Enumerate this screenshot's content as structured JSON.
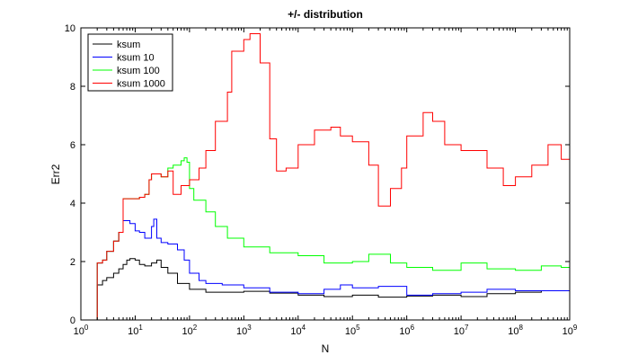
{
  "chart_data": {
    "type": "line",
    "title": "+/- distribution",
    "xlabel": "N",
    "ylabel": "Err2",
    "xscale": "log",
    "xlim": [
      1,
      1000000000
    ],
    "ylim": [
      0,
      10
    ],
    "x_ticks": [
      {
        "value": 1,
        "base": "10",
        "exp": "0"
      },
      {
        "value": 10,
        "base": "10",
        "exp": "1"
      },
      {
        "value": 100,
        "base": "10",
        "exp": "2"
      },
      {
        "value": 1000,
        "base": "10",
        "exp": "3"
      },
      {
        "value": 10000,
        "base": "10",
        "exp": "4"
      },
      {
        "value": 100000,
        "base": "10",
        "exp": "5"
      },
      {
        "value": 1000000,
        "base": "10",
        "exp": "6"
      },
      {
        "value": 10000000,
        "base": "10",
        "exp": "7"
      },
      {
        "value": 100000000,
        "base": "10",
        "exp": "8"
      },
      {
        "value": 1000000000,
        "base": "10",
        "exp": "9"
      }
    ],
    "y_ticks": [
      "0",
      "2",
      "4",
      "6",
      "8",
      "10"
    ],
    "grid": false,
    "legend_position": "top-left",
    "series": [
      {
        "name": "ksum",
        "color": "#000000",
        "points": [
          [
            1,
            0
          ],
          [
            1.9,
            0
          ],
          [
            2,
            1.2
          ],
          [
            2.5,
            1.35
          ],
          [
            3,
            1.45
          ],
          [
            4,
            1.6
          ],
          [
            5,
            1.75
          ],
          [
            6,
            1.9
          ],
          [
            7,
            2.05
          ],
          [
            8,
            2.1
          ],
          [
            10,
            2.05
          ],
          [
            12,
            1.9
          ],
          [
            15,
            1.85
          ],
          [
            20,
            1.95
          ],
          [
            25,
            2.05
          ],
          [
            30,
            1.8
          ],
          [
            40,
            1.6
          ],
          [
            60,
            1.25
          ],
          [
            100,
            1.05
          ],
          [
            200,
            0.95
          ],
          [
            500,
            0.95
          ],
          [
            1000,
            0.98
          ],
          [
            3000,
            0.92
          ],
          [
            10000,
            0.85
          ],
          [
            30000,
            0.8
          ],
          [
            100000,
            0.85
          ],
          [
            300000,
            0.78
          ],
          [
            1000000,
            0.82
          ],
          [
            3000000,
            0.85
          ],
          [
            10000000,
            0.8
          ],
          [
            30000000,
            0.9
          ],
          [
            100000000,
            0.95
          ],
          [
            300000000,
            1.0
          ],
          [
            1000000000,
            0.85
          ]
        ]
      },
      {
        "name": "ksum 10",
        "color": "#0000ff",
        "points": [
          [
            1,
            0
          ],
          [
            1.9,
            0
          ],
          [
            2,
            1.95
          ],
          [
            2.5,
            2.05
          ],
          [
            3,
            2.35
          ],
          [
            4,
            2.7
          ],
          [
            5,
            3.0
          ],
          [
            6,
            3.4
          ],
          [
            8,
            3.3
          ],
          [
            10,
            3.05
          ],
          [
            12,
            3.0
          ],
          [
            15,
            2.8
          ],
          [
            20,
            3.2
          ],
          [
            22,
            3.45
          ],
          [
            25,
            2.8
          ],
          [
            30,
            2.65
          ],
          [
            40,
            2.6
          ],
          [
            60,
            2.4
          ],
          [
            80,
            2.05
          ],
          [
            100,
            1.6
          ],
          [
            150,
            1.35
          ],
          [
            200,
            1.25
          ],
          [
            400,
            1.2
          ],
          [
            1000,
            1.1
          ],
          [
            3000,
            0.95
          ],
          [
            10000,
            0.9
          ],
          [
            30000,
            1.05
          ],
          [
            60000,
            1.2
          ],
          [
            100000,
            1.1
          ],
          [
            300000,
            1.15
          ],
          [
            1000000,
            0.85
          ],
          [
            3000000,
            0.9
          ],
          [
            10000000,
            0.95
          ],
          [
            30000000,
            1.05
          ],
          [
            100000000,
            1.0
          ],
          [
            300000000,
            1.0
          ],
          [
            1000000000,
            0.95
          ]
        ]
      },
      {
        "name": "ksum 100",
        "color": "#00ff00",
        "points": [
          [
            1,
            0
          ],
          [
            1.9,
            0
          ],
          [
            2,
            1.95
          ],
          [
            2.5,
            2.05
          ],
          [
            3,
            2.35
          ],
          [
            4,
            2.7
          ],
          [
            5,
            3.0
          ],
          [
            6,
            4.15
          ],
          [
            8,
            4.15
          ],
          [
            10,
            4.15
          ],
          [
            12,
            4.2
          ],
          [
            15,
            4.3
          ],
          [
            18,
            4.8
          ],
          [
            20,
            5.0
          ],
          [
            30,
            4.9
          ],
          [
            40,
            5.2
          ],
          [
            50,
            5.3
          ],
          [
            70,
            5.45
          ],
          [
            80,
            5.55
          ],
          [
            90,
            5.4
          ],
          [
            100,
            4.5
          ],
          [
            120,
            4.1
          ],
          [
            200,
            3.7
          ],
          [
            300,
            3.2
          ],
          [
            500,
            2.8
          ],
          [
            1000,
            2.5
          ],
          [
            3000,
            2.3
          ],
          [
            10000,
            2.2
          ],
          [
            30000,
            1.95
          ],
          [
            100000,
            2.0
          ],
          [
            200000,
            2.25
          ],
          [
            500000,
            1.95
          ],
          [
            1000000,
            1.8
          ],
          [
            3000000,
            1.7
          ],
          [
            10000000,
            1.95
          ],
          [
            30000000,
            1.75
          ],
          [
            100000000,
            1.7
          ],
          [
            300000000,
            1.85
          ],
          [
            700000000,
            1.8
          ],
          [
            1000000000,
            1.45
          ]
        ]
      },
      {
        "name": "ksum 1000",
        "color": "#ff0000",
        "points": [
          [
            1,
            0
          ],
          [
            1.9,
            0
          ],
          [
            2,
            1.95
          ],
          [
            2.5,
            2.05
          ],
          [
            3,
            2.35
          ],
          [
            4,
            2.7
          ],
          [
            5,
            3.0
          ],
          [
            6,
            4.15
          ],
          [
            8,
            4.15
          ],
          [
            10,
            4.15
          ],
          [
            12,
            4.2
          ],
          [
            15,
            4.3
          ],
          [
            18,
            4.8
          ],
          [
            20,
            5.0
          ],
          [
            30,
            4.9
          ],
          [
            40,
            5.1
          ],
          [
            50,
            4.3
          ],
          [
            70,
            4.6
          ],
          [
            100,
            4.8
          ],
          [
            150,
            5.2
          ],
          [
            200,
            5.8
          ],
          [
            300,
            6.8
          ],
          [
            500,
            7.8
          ],
          [
            600,
            9.2
          ],
          [
            1000,
            9.6
          ],
          [
            1300,
            9.8
          ],
          [
            2000,
            8.8
          ],
          [
            3000,
            6.2
          ],
          [
            4000,
            5.1
          ],
          [
            6000,
            5.2
          ],
          [
            10000,
            6.0
          ],
          [
            20000,
            6.5
          ],
          [
            40000,
            6.6
          ],
          [
            60000,
            6.3
          ],
          [
            100000,
            6.1
          ],
          [
            200000,
            5.3
          ],
          [
            300000,
            3.9
          ],
          [
            500000,
            4.5
          ],
          [
            800000,
            5.2
          ],
          [
            1000000,
            6.3
          ],
          [
            2000000,
            7.1
          ],
          [
            3000000,
            6.8
          ],
          [
            5000000,
            6.0
          ],
          [
            10000000,
            5.8
          ],
          [
            30000000,
            5.2
          ],
          [
            60000000,
            4.6
          ],
          [
            100000000,
            4.9
          ],
          [
            200000000,
            5.3
          ],
          [
            400000000,
            6.0
          ],
          [
            700000000,
            5.5
          ],
          [
            1000000000,
            4.8
          ]
        ]
      }
    ]
  }
}
